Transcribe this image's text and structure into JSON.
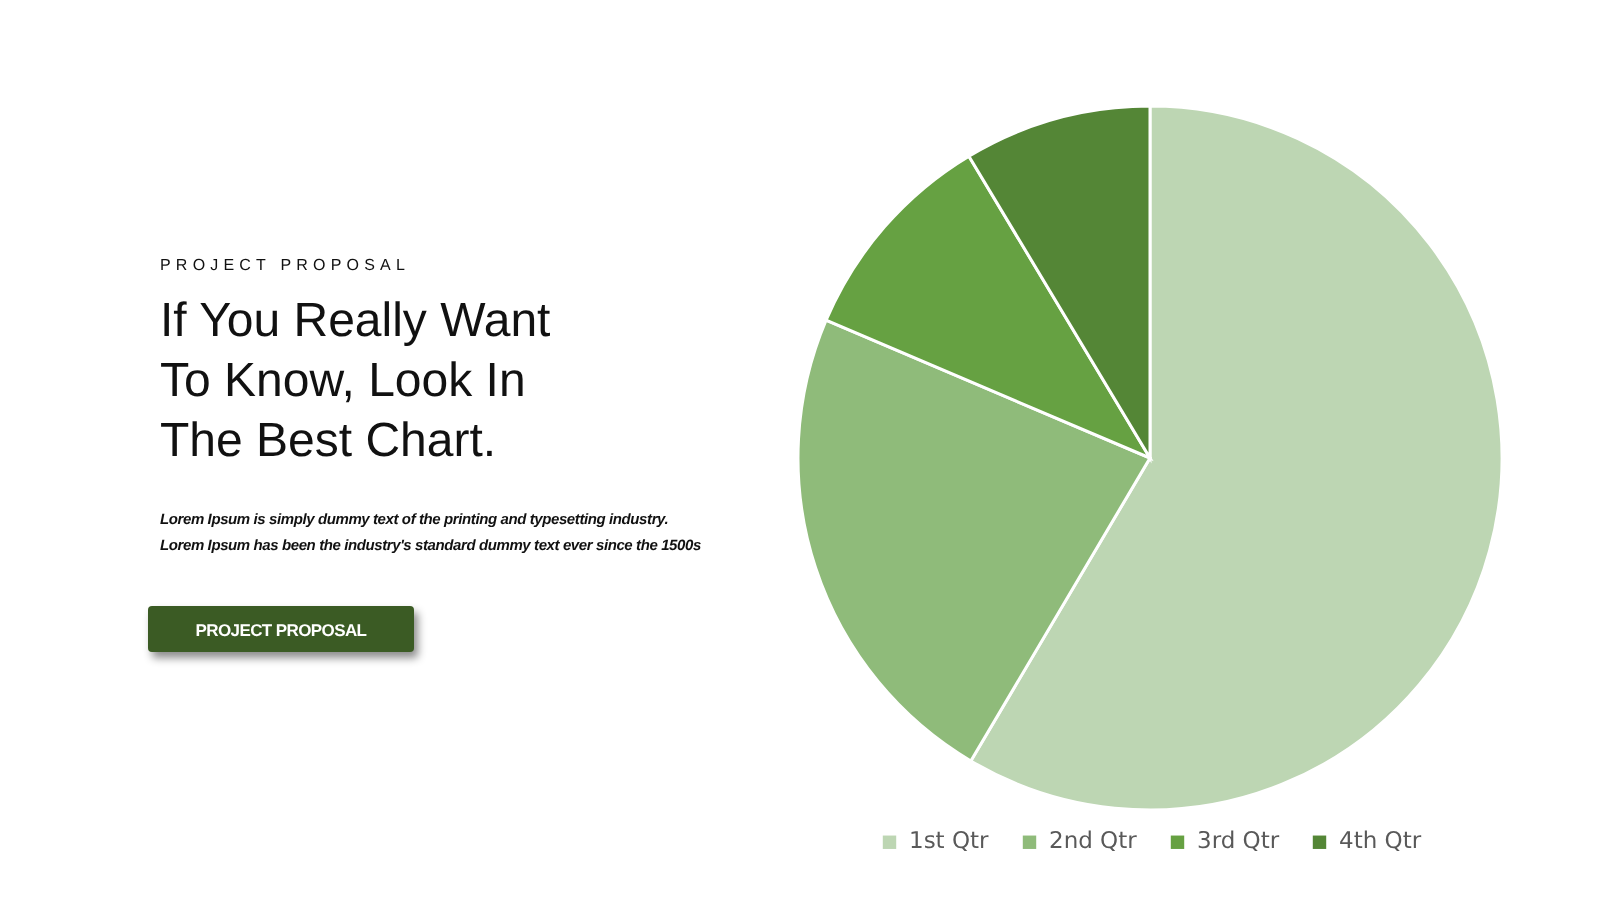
{
  "chart_data": {
    "type": "pie",
    "title": "If You Really Want To Know, Look In The Best Chart.",
    "annotations": [
      "PROJECT PROPOSAL",
      "Lorem Ipsum is simply dummy text of the printing and typesetting industry.",
      "Lorem Ipsum has been the industry's standard dummy text ever since the 1500s",
      "PROJECT PROPOSAL"
    ],
    "categories": [
      "1st Qtr",
      "2nd Qtr",
      "3rd Qtr",
      "4th Qtr"
    ],
    "values": [
      58.5,
      22.9,
      10.0,
      8.6
    ],
    "colors": [
      "#bdd6b3",
      "#8fbb7a",
      "#66a142",
      "#548636"
    ],
    "legend": "bottom"
  }
}
